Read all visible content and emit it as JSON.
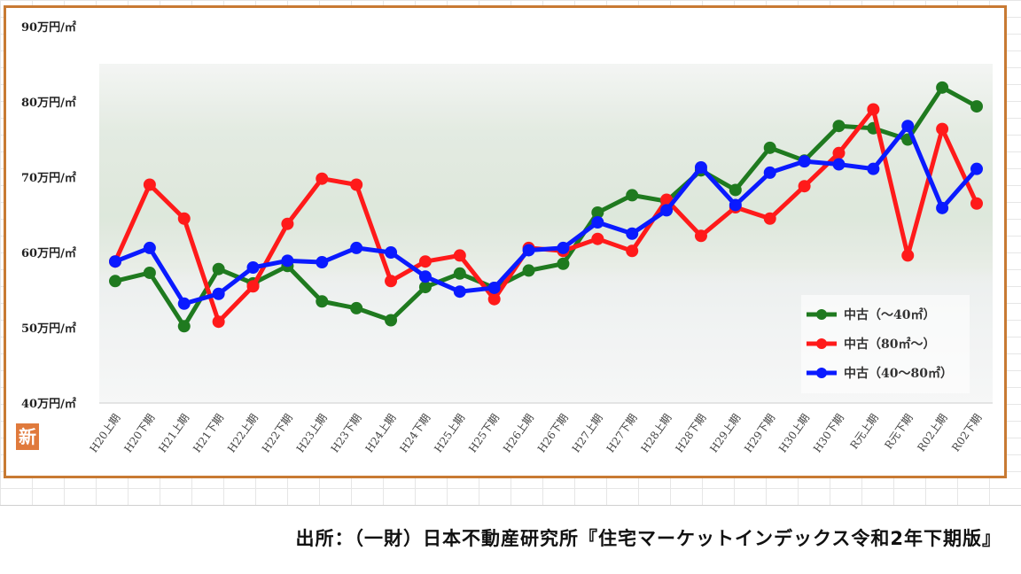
{
  "source_note": "出所：（一財）日本不動産研究所『住宅マーケットインデックス令和2年下期版』",
  "icon_label": "新",
  "chart_data": {
    "type": "line",
    "title": "",
    "xlabel": "",
    "ylabel": "",
    "ylim": [
      40,
      90
    ],
    "yticks": [
      "40万円/㎡",
      "50万円/㎡",
      "60万円/㎡",
      "70万円/㎡",
      "80万円/㎡",
      "90万円/㎡"
    ],
    "ytick_values": [
      40,
      50,
      60,
      70,
      80,
      90
    ],
    "categories": [
      "H20上期",
      "H20下期",
      "H21上期",
      "H21下期",
      "H22上期",
      "H22下期",
      "H23上期",
      "H23下期",
      "H24上期",
      "H24下期",
      "H25上期",
      "H25下期",
      "H26上期",
      "H26下期",
      "H27上期",
      "H27下期",
      "H28上期",
      "H28下期",
      "H29上期",
      "H29下期",
      "H30上期",
      "H30下期",
      "R元上期",
      "R元下期",
      "R02上期",
      "R02下期"
    ],
    "grid": false,
    "legend_position": "bottom-right",
    "series": [
      {
        "name": "中古（～40㎡）",
        "color": "#1f7a1f",
        "values": [
          56.2,
          57.3,
          50.2,
          57.8,
          55.9,
          58.2,
          53.5,
          52.6,
          51.0,
          55.4,
          57.2,
          55.3,
          57.6,
          58.5,
          65.3,
          67.6,
          66.8,
          70.9,
          68.3,
          73.9,
          72.2,
          76.8,
          76.5,
          75.0,
          81.9,
          79.4
        ]
      },
      {
        "name": "中古（80㎡～）",
        "color": "#ff1a1a",
        "values": [
          58.8,
          69.0,
          64.5,
          50.8,
          55.5,
          63.8,
          69.8,
          69.0,
          56.2,
          58.8,
          59.6,
          53.8,
          60.6,
          60.2,
          61.8,
          60.2,
          67.0,
          62.2,
          66.0,
          64.5,
          68.8,
          73.2,
          79.0,
          59.6,
          76.4,
          66.5
        ]
      },
      {
        "name": "中古（40～80㎡）",
        "color": "#0a1aff",
        "values": [
          58.8,
          60.6,
          53.2,
          54.5,
          58.0,
          58.9,
          58.7,
          60.6,
          60.0,
          56.8,
          54.8,
          55.3,
          60.3,
          60.6,
          64.0,
          62.5,
          65.6,
          71.3,
          66.3,
          70.6,
          72.1,
          71.7,
          71.1,
          76.8,
          65.9,
          71.1
        ]
      }
    ]
  }
}
